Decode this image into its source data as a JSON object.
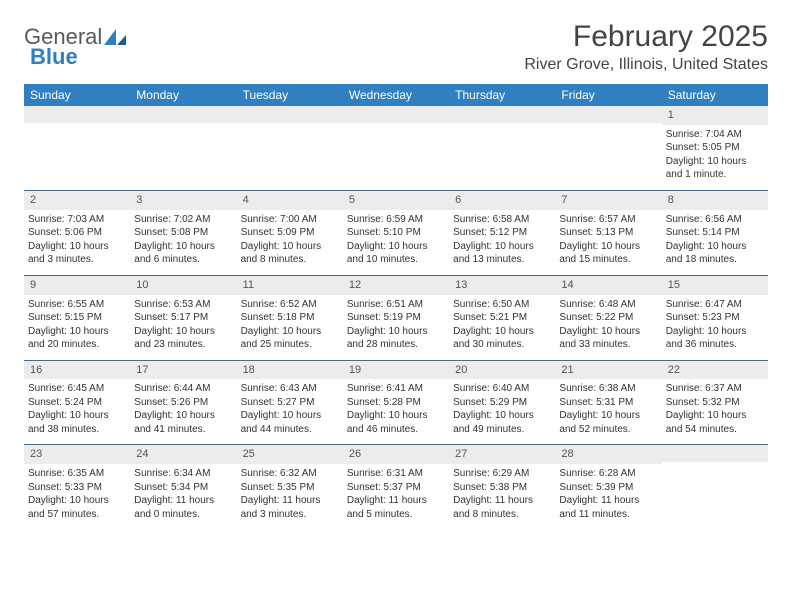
{
  "brand": {
    "part1": "General",
    "part2": "Blue"
  },
  "title": "February 2025",
  "location": "River Grove, Illinois, United States",
  "colors": {
    "header_bg": "#2f7fc1",
    "header_text": "#ffffff",
    "daynum_bg": "#ececec",
    "week_border": "#4a6a8a",
    "body_text": "#333333",
    "title_text": "#444444"
  },
  "day_names": [
    "Sunday",
    "Monday",
    "Tuesday",
    "Wednesday",
    "Thursday",
    "Friday",
    "Saturday"
  ],
  "weeks": [
    [
      null,
      null,
      null,
      null,
      null,
      null,
      {
        "n": "1",
        "sr": "Sunrise: 7:04 AM",
        "ss": "Sunset: 5:05 PM",
        "dl": "Daylight: 10 hours and 1 minute."
      }
    ],
    [
      {
        "n": "2",
        "sr": "Sunrise: 7:03 AM",
        "ss": "Sunset: 5:06 PM",
        "dl": "Daylight: 10 hours and 3 minutes."
      },
      {
        "n": "3",
        "sr": "Sunrise: 7:02 AM",
        "ss": "Sunset: 5:08 PM",
        "dl": "Daylight: 10 hours and 6 minutes."
      },
      {
        "n": "4",
        "sr": "Sunrise: 7:00 AM",
        "ss": "Sunset: 5:09 PM",
        "dl": "Daylight: 10 hours and 8 minutes."
      },
      {
        "n": "5",
        "sr": "Sunrise: 6:59 AM",
        "ss": "Sunset: 5:10 PM",
        "dl": "Daylight: 10 hours and 10 minutes."
      },
      {
        "n": "6",
        "sr": "Sunrise: 6:58 AM",
        "ss": "Sunset: 5:12 PM",
        "dl": "Daylight: 10 hours and 13 minutes."
      },
      {
        "n": "7",
        "sr": "Sunrise: 6:57 AM",
        "ss": "Sunset: 5:13 PM",
        "dl": "Daylight: 10 hours and 15 minutes."
      },
      {
        "n": "8",
        "sr": "Sunrise: 6:56 AM",
        "ss": "Sunset: 5:14 PM",
        "dl": "Daylight: 10 hours and 18 minutes."
      }
    ],
    [
      {
        "n": "9",
        "sr": "Sunrise: 6:55 AM",
        "ss": "Sunset: 5:15 PM",
        "dl": "Daylight: 10 hours and 20 minutes."
      },
      {
        "n": "10",
        "sr": "Sunrise: 6:53 AM",
        "ss": "Sunset: 5:17 PM",
        "dl": "Daylight: 10 hours and 23 minutes."
      },
      {
        "n": "11",
        "sr": "Sunrise: 6:52 AM",
        "ss": "Sunset: 5:18 PM",
        "dl": "Daylight: 10 hours and 25 minutes."
      },
      {
        "n": "12",
        "sr": "Sunrise: 6:51 AM",
        "ss": "Sunset: 5:19 PM",
        "dl": "Daylight: 10 hours and 28 minutes."
      },
      {
        "n": "13",
        "sr": "Sunrise: 6:50 AM",
        "ss": "Sunset: 5:21 PM",
        "dl": "Daylight: 10 hours and 30 minutes."
      },
      {
        "n": "14",
        "sr": "Sunrise: 6:48 AM",
        "ss": "Sunset: 5:22 PM",
        "dl": "Daylight: 10 hours and 33 minutes."
      },
      {
        "n": "15",
        "sr": "Sunrise: 6:47 AM",
        "ss": "Sunset: 5:23 PM",
        "dl": "Daylight: 10 hours and 36 minutes."
      }
    ],
    [
      {
        "n": "16",
        "sr": "Sunrise: 6:45 AM",
        "ss": "Sunset: 5:24 PM",
        "dl": "Daylight: 10 hours and 38 minutes."
      },
      {
        "n": "17",
        "sr": "Sunrise: 6:44 AM",
        "ss": "Sunset: 5:26 PM",
        "dl": "Daylight: 10 hours and 41 minutes."
      },
      {
        "n": "18",
        "sr": "Sunrise: 6:43 AM",
        "ss": "Sunset: 5:27 PM",
        "dl": "Daylight: 10 hours and 44 minutes."
      },
      {
        "n": "19",
        "sr": "Sunrise: 6:41 AM",
        "ss": "Sunset: 5:28 PM",
        "dl": "Daylight: 10 hours and 46 minutes."
      },
      {
        "n": "20",
        "sr": "Sunrise: 6:40 AM",
        "ss": "Sunset: 5:29 PM",
        "dl": "Daylight: 10 hours and 49 minutes."
      },
      {
        "n": "21",
        "sr": "Sunrise: 6:38 AM",
        "ss": "Sunset: 5:31 PM",
        "dl": "Daylight: 10 hours and 52 minutes."
      },
      {
        "n": "22",
        "sr": "Sunrise: 6:37 AM",
        "ss": "Sunset: 5:32 PM",
        "dl": "Daylight: 10 hours and 54 minutes."
      }
    ],
    [
      {
        "n": "23",
        "sr": "Sunrise: 6:35 AM",
        "ss": "Sunset: 5:33 PM",
        "dl": "Daylight: 10 hours and 57 minutes."
      },
      {
        "n": "24",
        "sr": "Sunrise: 6:34 AM",
        "ss": "Sunset: 5:34 PM",
        "dl": "Daylight: 11 hours and 0 minutes."
      },
      {
        "n": "25",
        "sr": "Sunrise: 6:32 AM",
        "ss": "Sunset: 5:35 PM",
        "dl": "Daylight: 11 hours and 3 minutes."
      },
      {
        "n": "26",
        "sr": "Sunrise: 6:31 AM",
        "ss": "Sunset: 5:37 PM",
        "dl": "Daylight: 11 hours and 5 minutes."
      },
      {
        "n": "27",
        "sr": "Sunrise: 6:29 AM",
        "ss": "Sunset: 5:38 PM",
        "dl": "Daylight: 11 hours and 8 minutes."
      },
      {
        "n": "28",
        "sr": "Sunrise: 6:28 AM",
        "ss": "Sunset: 5:39 PM",
        "dl": "Daylight: 11 hours and 11 minutes."
      },
      null
    ]
  ]
}
